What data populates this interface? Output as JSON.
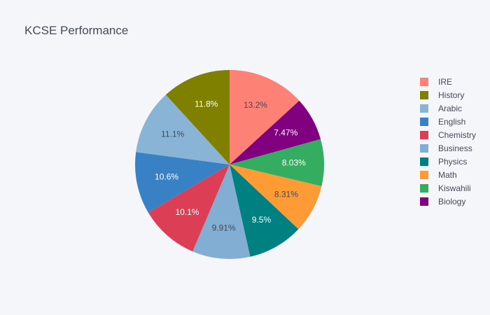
{
  "chart_data": {
    "type": "pie",
    "title": "KCSE Performance",
    "slices": [
      {
        "label": "IRE",
        "value": 13.2,
        "display": "13.2%",
        "color": "#fd8275",
        "text_color": "#444a56"
      },
      {
        "label": "Biology",
        "value": 7.47,
        "display": "7.47%",
        "color": "#800080",
        "text_color": "#ffffff"
      },
      {
        "label": "Kiswahili",
        "value": 8.03,
        "display": "8.03%",
        "color": "#35ad61",
        "text_color": "#ffffff"
      },
      {
        "label": "Math",
        "value": 8.31,
        "display": "8.31%",
        "color": "#ff9b35",
        "text_color": "#444a56"
      },
      {
        "label": "Physics",
        "value": 9.5,
        "display": "9.5%",
        "color": "#008080",
        "text_color": "#ffffff"
      },
      {
        "label": "Business",
        "value": 9.91,
        "display": "9.91%",
        "color": "#82aed3",
        "text_color": "#444a56"
      },
      {
        "label": "Chemistry",
        "value": 10.1,
        "display": "10.1%",
        "color": "#dc3f55",
        "text_color": "#ffffff"
      },
      {
        "label": "English",
        "value": 10.6,
        "display": "10.6%",
        "color": "#3881c4",
        "text_color": "#ffffff"
      },
      {
        "label": "Arabic",
        "value": 11.1,
        "display": "11.1%",
        "color": "#8ab4d6",
        "text_color": "#444a56"
      },
      {
        "label": "History",
        "value": 11.8,
        "display": "11.8%",
        "color": "#808000",
        "text_color": "#ffffff"
      }
    ],
    "legend": {
      "placement": "right",
      "order": [
        "IRE",
        "History",
        "Arabic",
        "English",
        "Chemistry",
        "Business",
        "Physics",
        "Math",
        "Kiswahili",
        "Biology"
      ]
    }
  }
}
